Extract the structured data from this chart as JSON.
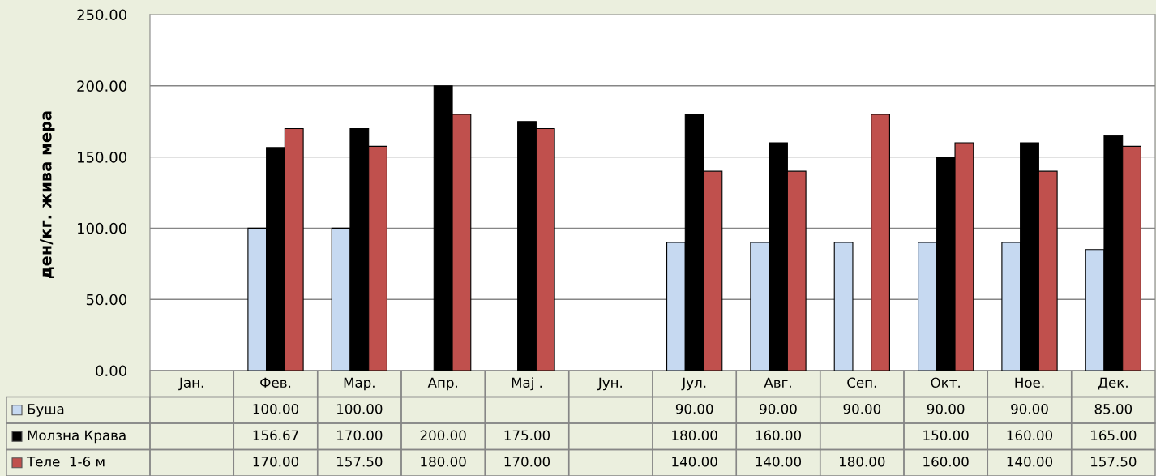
{
  "chart_data": {
    "type": "bar",
    "ylabel": "ден/кг. жива мера",
    "categories": [
      "Јан.",
      "Фев.",
      "Мар.",
      "Апр.",
      "Мај .",
      "Јун.",
      "Јул.",
      "Авг.",
      "Сеп.",
      "Окт.",
      "Ное.",
      "Дек."
    ],
    "series": [
      {
        "name": "Буша",
        "color": "#c6d9f1",
        "values": [
          null,
          100,
          100,
          null,
          null,
          null,
          90,
          90,
          90,
          90,
          90,
          85
        ],
        "value_labels": [
          null,
          "100.00",
          "100.00",
          null,
          null,
          null,
          "90.00",
          "90.00",
          "90.00",
          "90.00",
          "90.00",
          "85.00"
        ]
      },
      {
        "name": "Молзна Крава",
        "color": "#000000",
        "values": [
          null,
          156.67,
          170,
          200,
          175,
          null,
          180,
          160,
          null,
          150,
          160,
          165
        ],
        "value_labels": [
          null,
          "156.67",
          "170.00",
          "200.00",
          "175.00",
          null,
          "180.00",
          "160.00",
          null,
          "150.00",
          "160.00",
          "165.00"
        ]
      },
      {
        "name": "Теле  1-6 м",
        "color": "#c0504d",
        "values": [
          null,
          170,
          157.5,
          180,
          170,
          null,
          140,
          140,
          180,
          160,
          140,
          157.5
        ],
        "value_labels": [
          null,
          "170.00",
          "157.50",
          "180.00",
          "170.00",
          null,
          "140.00",
          "140.00",
          "180.00",
          "160.00",
          "140.00",
          "157.50"
        ]
      }
    ],
    "ylim": [
      0,
      250
    ],
    "yticks": [
      {
        "value": 0,
        "label": "0.00"
      },
      {
        "value": 50,
        "label": "50.00"
      },
      {
        "value": 100,
        "label": "100.00"
      },
      {
        "value": 150,
        "label": "150.00"
      },
      {
        "value": 200,
        "label": "200.00"
      },
      {
        "value": 250,
        "label": "250.00"
      }
    ],
    "grid": "y",
    "legend": "bottom left"
  }
}
